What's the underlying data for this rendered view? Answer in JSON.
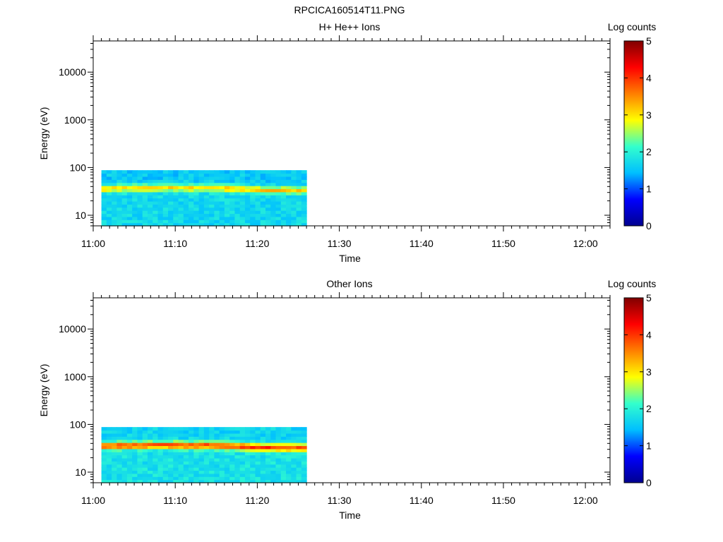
{
  "figure_title": "RPCICA160514T11.PNG",
  "colormap_stops": [
    "#00008f",
    "#0000ff",
    "#00bfff",
    "#33ffcc",
    "#ffff00",
    "#ff7f00",
    "#ff0000",
    "#800000"
  ],
  "chart_data": [
    {
      "type": "heatmap",
      "title": "H+ He++ Ions",
      "xlabel": "Time",
      "ylabel": "Energy (eV)",
      "xticks": [
        "11:00",
        "11:10",
        "11:20",
        "11:30",
        "11:40",
        "11:50",
        "12:00"
      ],
      "xlim": [
        "11:00",
        "12:03"
      ],
      "yscale": "log",
      "yticks": [
        10,
        100,
        1000,
        10000
      ],
      "ylim": [
        6,
        45000
      ],
      "data_time_range": [
        "11:01",
        "11:26"
      ],
      "data_energy_range_eV": [
        6,
        88
      ],
      "peak_energy_eV": 37,
      "peak_log_counts": 3.2,
      "background_log_counts": 1.7,
      "colorbar": {
        "label": "Log counts",
        "range": [
          0,
          5
        ],
        "ticks": [
          0,
          1,
          2,
          3,
          4,
          5
        ]
      }
    },
    {
      "type": "heatmap",
      "title": "Other Ions",
      "xlabel": "Time",
      "ylabel": "Energy (eV)",
      "xticks": [
        "11:00",
        "11:10",
        "11:20",
        "11:30",
        "11:40",
        "11:50",
        "12:00"
      ],
      "xlim": [
        "11:00",
        "12:03"
      ],
      "yscale": "log",
      "yticks": [
        10,
        100,
        1000,
        10000
      ],
      "ylim": [
        6,
        45000
      ],
      "data_time_range": [
        "11:01",
        "11:26"
      ],
      "data_energy_range_eV": [
        6,
        88
      ],
      "peak_energy_eV": 36,
      "peak_log_counts": 4.0,
      "background_log_counts": 1.8,
      "colorbar": {
        "label": "Log counts",
        "range": [
          0,
          5
        ],
        "ticks": [
          0,
          1,
          2,
          3,
          4,
          5
        ]
      }
    }
  ]
}
